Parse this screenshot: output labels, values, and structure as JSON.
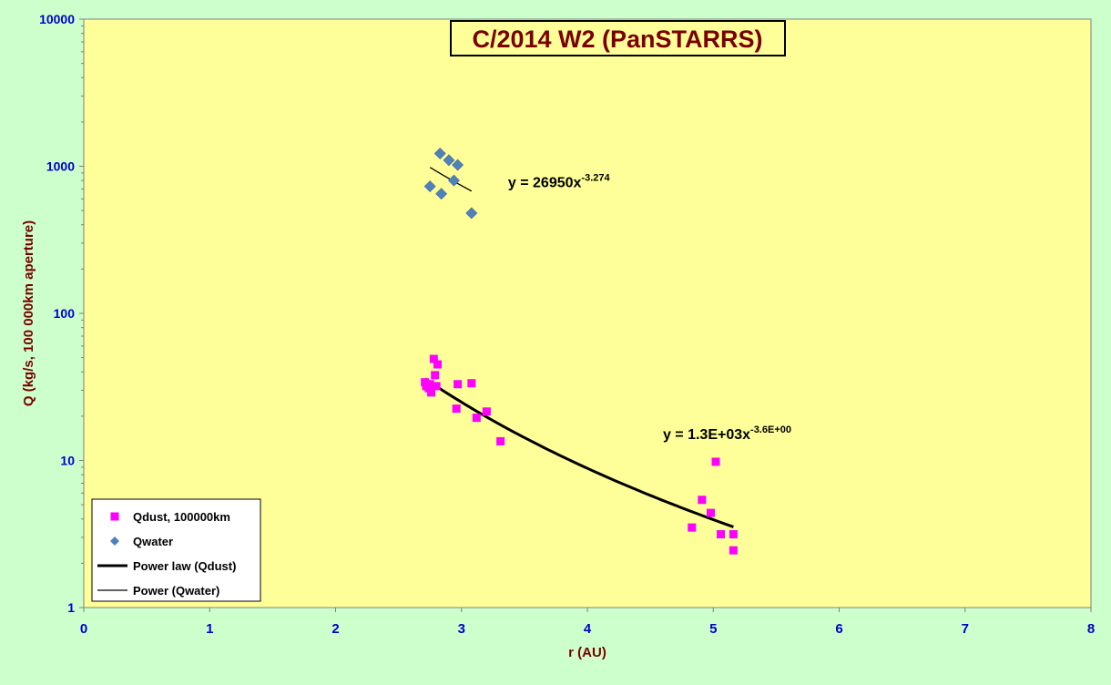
{
  "chart_data": {
    "type": "scatter",
    "title": "C/2014 W2 (PanSTARRS)",
    "xlabel": "r (AU)",
    "ylabel": "Q (kg/s, 100 000km aperture)",
    "xlim": [
      0,
      8
    ],
    "ylim": [
      1,
      10000
    ],
    "yscale": "log",
    "x_ticks": [
      "0",
      "1",
      "2",
      "3",
      "4",
      "5",
      "6",
      "7",
      "8"
    ],
    "y_ticks": [
      "1",
      "10",
      "100",
      "1000",
      "10000"
    ],
    "grid": false,
    "legend_position": "bottom-left",
    "colors": {
      "plot_bg": "#ffff99",
      "outer_bg": "#ccffcc",
      "dust": "#ff00ff",
      "water": "#4f81bd",
      "axis_text": "#0000cc",
      "title_text": "#7a0000"
    },
    "series": [
      {
        "name": "Qdust, 100000km",
        "marker": "square",
        "points": [
          [
            2.71,
            34
          ],
          [
            2.72,
            32
          ],
          [
            2.74,
            31
          ],
          [
            2.75,
            33
          ],
          [
            2.76,
            29
          ],
          [
            2.78,
            49
          ],
          [
            2.79,
            38
          ],
          [
            2.8,
            32
          ],
          [
            2.81,
            45
          ],
          [
            2.96,
            22.5
          ],
          [
            2.97,
            33
          ],
          [
            3.08,
            33.5
          ],
          [
            3.12,
            19.5
          ],
          [
            3.2,
            21.5
          ],
          [
            3.31,
            13.5
          ],
          [
            4.83,
            3.5
          ],
          [
            4.91,
            5.4
          ],
          [
            4.98,
            4.4
          ],
          [
            5.02,
            9.8
          ],
          [
            5.06,
            3.15
          ],
          [
            5.16,
            3.15
          ],
          [
            5.16,
            2.45
          ]
        ]
      },
      {
        "name": "Qwater",
        "marker": "diamond",
        "points": [
          [
            2.75,
            730
          ],
          [
            2.83,
            1220
          ],
          [
            2.84,
            650
          ],
          [
            2.9,
            1100
          ],
          [
            2.94,
            800
          ],
          [
            2.97,
            1020
          ],
          [
            3.08,
            480
          ]
        ]
      }
    ],
    "trendlines": [
      {
        "name": "Power law (Qdust)",
        "a": 1300,
        "b": -3.6,
        "x_range": [
          2.71,
          5.16
        ],
        "label_main": "y = 1.3E+03x",
        "label_exp": "-3.6E+00",
        "label_at": [
          4.6,
          14
        ]
      },
      {
        "name": "Power (Qwater)",
        "a": 26950,
        "b": -3.274,
        "x_range": [
          2.75,
          3.08
        ],
        "label_main": "y = 26950x",
        "label_exp": "-3.274",
        "label_at": [
          3.37,
          720
        ]
      }
    ]
  }
}
